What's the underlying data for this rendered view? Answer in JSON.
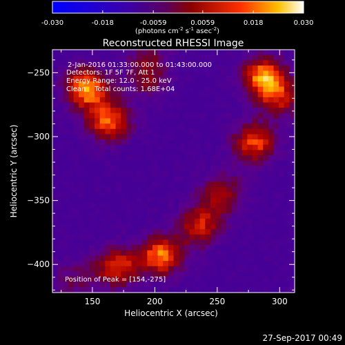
{
  "colorbar": {
    "ticks": [
      "-0.030",
      "-0.018",
      "-0.0059",
      "0.0059",
      "0.018",
      "0.030"
    ],
    "min": -0.03,
    "max": 0.03,
    "units_label": "(photons cm",
    "units_sup1": "-2",
    "units_mid1": " s",
    "units_sup2": "-1",
    "units_mid2": " asec",
    "units_sup3": "-2",
    "units_end": ")"
  },
  "chart_data": {
    "type": "heatmap",
    "title": "Reconstructed RHESSI Image",
    "xlabel": "Heliocentric X (arcsec)",
    "ylabel": "Heliocentric Y (arcsec)",
    "xlim": [
      118,
      312
    ],
    "ylim": [
      -422,
      -232
    ],
    "xticks": [
      150,
      200,
      250,
      300
    ],
    "yticks": [
      -250,
      -300,
      -350,
      -400
    ],
    "colormap": "hot (blue-purple-red-yellow-white)",
    "peak": [
      154,
      -275
    ],
    "blobs": [
      {
        "x": 145,
        "y": -262,
        "value": 0.03
      },
      {
        "x": 163,
        "y": -288,
        "value": 0.026
      },
      {
        "x": 193,
        "y": -253,
        "value": 0.014
      },
      {
        "x": 287,
        "y": -253,
        "value": 0.028
      },
      {
        "x": 300,
        "y": -270,
        "value": 0.018
      },
      {
        "x": 280,
        "y": -305,
        "value": 0.024
      },
      {
        "x": 253,
        "y": -345,
        "value": 0.018
      },
      {
        "x": 236,
        "y": -370,
        "value": 0.02
      },
      {
        "x": 205,
        "y": -393,
        "value": 0.027
      },
      {
        "x": 170,
        "y": -402,
        "value": 0.022
      },
      {
        "x": 135,
        "y": -412,
        "value": 0.01
      },
      {
        "x": 196,
        "y": -232,
        "value": 0.008
      }
    ],
    "annotations": {
      "line1": "2-Jan-2016 01:33:00.000 to 01:43:00.000",
      "line2": "Detectors: 1F 5F 7F, Att 1",
      "line3": "Energy Range: 12.0 - 25.0 keV",
      "line4": "Clean    Total counts: 1.68E+04",
      "peak_label": "Position of Peak = [154,-275]"
    }
  },
  "timestamp": "27-Sep-2017 00:49",
  "colors": {
    "background": "#000000",
    "text": "#ffffff"
  }
}
